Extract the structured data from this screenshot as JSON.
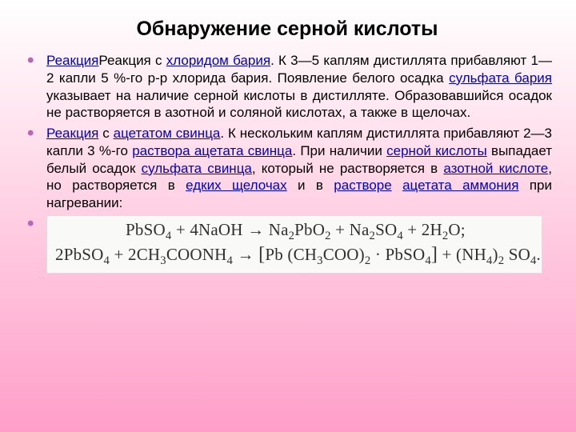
{
  "title": "Обнаружение серной кислоты",
  "p1": {
    "link1": "Реакция",
    "t1": "Реакция с ",
    "link2": "хлоридом бария",
    "t2": ". К 3—5 каплям дистиллята прибавляют 1—2 капли 5 %-го р-р хлорида бария. Появление белого осадка ",
    "link3": "сульфата бария",
    "t3": " указывает на наличие серной кислоты в дистилляте. Образовавшийся осадок не растворяется в азотной и соляной кислотах, а также в щелочах."
  },
  "p2": {
    "link1": "Реакция",
    "t1": " с ",
    "link2": "ацетатом свинца",
    "t2": ". К нескольким каплям дистиллята прибавляют 2—3 капли 3 %-го ",
    "link3": "раствора ацетата свинца",
    "t3": ". При наличии ",
    "link4": "серной кислоты",
    "t4": " выпадает белый осадок ",
    "link5": "сульфата свинца",
    "t5": ", который не растворяется в ",
    "link6": "азотной кислоте",
    "t6": ", но растворяется в ",
    "link7": "едких щелочах",
    "t7": " и в ",
    "link8": "растворе",
    "t8": " ",
    "link9": "ацетата аммония",
    "t9": " при нагревании:"
  },
  "formula": {
    "background": "#f9f9f7",
    "text_color": "#303030",
    "font_family": "Cambria Math",
    "fontsize": 21,
    "line1_html": "PbSO<sub>4</sub> + 4NaOH → Na<sub>2</sub>PbO<sub>2</sub> + Na<sub>2</sub>SO<sub>4</sub> + 2H<sub>2</sub>O;",
    "line2_html": "2PbSO<sub>4</sub> + 2CH<sub>3</sub>COONH<sub>4</sub> → <span class='big'>[</span>Pb (CH<sub>3</sub>COO)<sub>2</sub> · PbSO<sub>4</sub><span class='big'>]</span> + (NH<sub>4</sub>)<sub>2</sub> SO<sub>4</sub>."
  },
  "colors": {
    "bullet": "#b866b8",
    "link": "#0000cc",
    "bg_top": "#ffffff",
    "bg_mid": "#ffd9e8",
    "bg_bottom": "#ff9ec9"
  },
  "typography": {
    "title_fontsize": 25,
    "body_fontsize": 17,
    "font_family": "Arial"
  }
}
